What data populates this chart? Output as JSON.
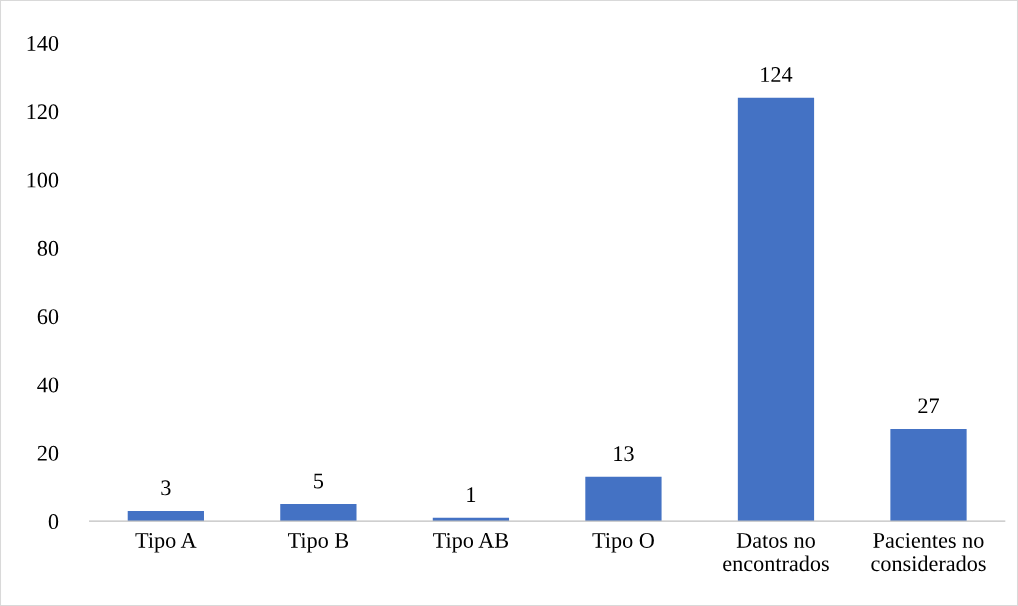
{
  "chart_data": {
    "type": "bar",
    "categories": [
      "Tipo A",
      "Tipo B",
      "Tipo AB",
      "Tipo O",
      "Datos no\nencontrados",
      "Pacientes no\nconsiderados"
    ],
    "values": [
      3,
      5,
      1,
      13,
      124,
      27
    ],
    "color": "#4472c4",
    "ylim": [
      0,
      140
    ],
    "yticks": [
      0,
      20,
      40,
      60,
      80,
      100,
      120,
      140
    ],
    "grid": false,
    "data_labels": true,
    "legend": false
  }
}
